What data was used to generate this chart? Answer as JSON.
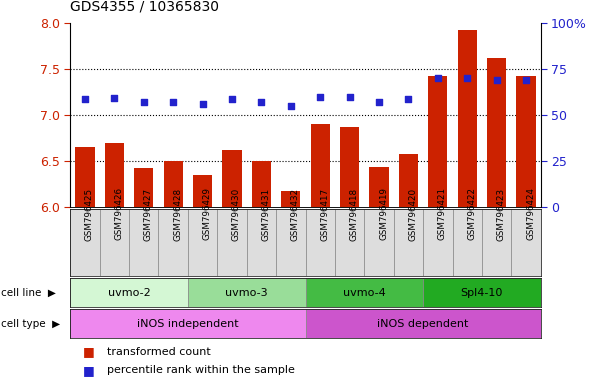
{
  "title": "GDS4355 / 10365830",
  "samples": [
    "GSM796425",
    "GSM796426",
    "GSM796427",
    "GSM796428",
    "GSM796429",
    "GSM796430",
    "GSM796431",
    "GSM796432",
    "GSM796417",
    "GSM796418",
    "GSM796419",
    "GSM796420",
    "GSM796421",
    "GSM796422",
    "GSM796423",
    "GSM796424"
  ],
  "transformed_count": [
    6.65,
    6.7,
    6.43,
    6.5,
    6.35,
    6.62,
    6.5,
    6.18,
    6.9,
    6.87,
    6.44,
    6.58,
    7.42,
    7.92,
    7.62,
    7.42
  ],
  "percentile_rank_left": [
    7.18,
    7.19,
    7.14,
    7.14,
    7.12,
    7.18,
    7.14,
    7.1,
    7.2,
    7.2,
    7.14,
    7.18,
    7.4,
    7.4,
    7.38,
    7.38
  ],
  "cell_lines": [
    {
      "label": "uvmo-2",
      "start": 0,
      "end": 4,
      "color": "#d4f7d4"
    },
    {
      "label": "uvmo-3",
      "start": 4,
      "end": 8,
      "color": "#99dd99"
    },
    {
      "label": "uvmo-4",
      "start": 8,
      "end": 12,
      "color": "#44bb44"
    },
    {
      "label": "Spl4-10",
      "start": 12,
      "end": 16,
      "color": "#22aa22"
    }
  ],
  "cell_types": [
    {
      "label": "iNOS independent",
      "start": 0,
      "end": 8,
      "color": "#ee88ee"
    },
    {
      "label": "iNOS dependent",
      "start": 8,
      "end": 16,
      "color": "#cc55cc"
    }
  ],
  "ylim_left": [
    6.0,
    8.0
  ],
  "ylim_right": [
    0,
    100
  ],
  "yticks_left": [
    6.0,
    6.5,
    7.0,
    7.5,
    8.0
  ],
  "yticks_right": [
    0,
    25,
    50,
    75,
    100
  ],
  "bar_color": "#cc2200",
  "dot_color": "#2222cc",
  "left_tick_color": "#cc2200",
  "right_tick_color": "#2222cc",
  "sample_box_color": "#dddddd",
  "sample_box_edge": "#888888"
}
